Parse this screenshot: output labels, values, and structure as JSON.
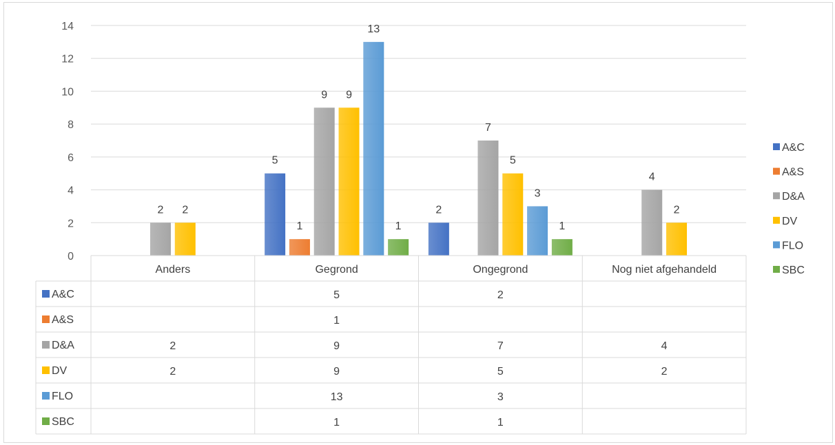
{
  "chart_data": {
    "type": "bar",
    "categories": [
      "Anders",
      "Gegrond",
      "Ongegrond",
      "Nog niet afgehandeld"
    ],
    "series": [
      {
        "name": "A&C",
        "color": "#4472C4",
        "values": [
          null,
          5,
          2,
          null
        ]
      },
      {
        "name": "A&S",
        "color": "#ED7D31",
        "values": [
          null,
          1,
          null,
          null
        ]
      },
      {
        "name": "D&A",
        "color": "#A5A5A5",
        "values": [
          2,
          9,
          7,
          4
        ]
      },
      {
        "name": "DV",
        "color": "#FFC000",
        "values": [
          2,
          9,
          5,
          2
        ]
      },
      {
        "name": "FLO",
        "color": "#5B9BD5",
        "values": [
          null,
          13,
          3,
          null
        ]
      },
      {
        "name": "SBC",
        "color": "#70AD47",
        "values": [
          null,
          1,
          1,
          null
        ]
      }
    ],
    "ylim": [
      0,
      14
    ],
    "yticks": [
      0,
      2,
      4,
      6,
      8,
      10,
      12,
      14
    ],
    "gridlines": true,
    "data_labels": true,
    "data_table": true,
    "legend_position": "right"
  }
}
